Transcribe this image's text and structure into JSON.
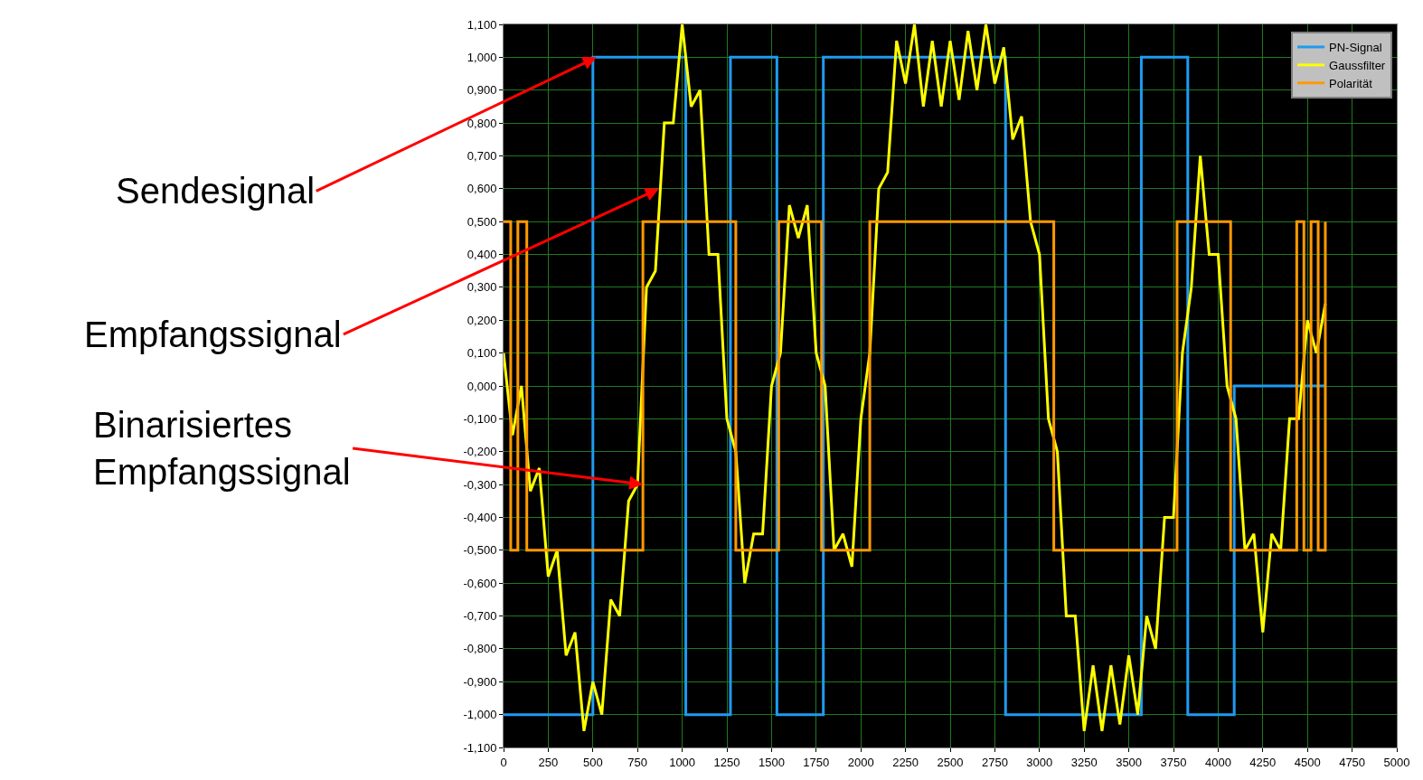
{
  "chart_data": {
    "type": "step",
    "xlim": [
      0,
      5000
    ],
    "xticks": [
      0,
      250,
      500,
      750,
      1000,
      1250,
      1500,
      1750,
      2000,
      2250,
      2500,
      2750,
      3000,
      3250,
      3500,
      3750,
      4000,
      4250,
      4500,
      4750,
      5000
    ],
    "ylim": [
      -1.1,
      1.1
    ],
    "yticks": [
      {
        "value": 1.1,
        "label": "1,100"
      },
      {
        "value": 1.0,
        "label": "1,000"
      },
      {
        "value": 0.9,
        "label": "0,900"
      },
      {
        "value": 0.8,
        "label": "0,800"
      },
      {
        "value": 0.7,
        "label": "0,700"
      },
      {
        "value": 0.6,
        "label": "0,600"
      },
      {
        "value": 0.5,
        "label": "0,500"
      },
      {
        "value": 0.4,
        "label": "0,400"
      },
      {
        "value": 0.3,
        "label": "0,300"
      },
      {
        "value": 0.2,
        "label": "0,200"
      },
      {
        "value": 0.1,
        "label": "0,100"
      },
      {
        "value": 0.0,
        "label": "0,000"
      },
      {
        "value": -0.1,
        "label": "-0,100"
      },
      {
        "value": -0.2,
        "label": "-0,200"
      },
      {
        "value": -0.3,
        "label": "-0,300"
      },
      {
        "value": -0.4,
        "label": "-0,400"
      },
      {
        "value": -0.5,
        "label": "-0,500"
      },
      {
        "value": -0.6,
        "label": "-0,600"
      },
      {
        "value": -0.7,
        "label": "-0,700"
      },
      {
        "value": -0.8,
        "label": "-0,800"
      },
      {
        "value": -0.9,
        "label": "-0,900"
      },
      {
        "value": -1.0,
        "label": "-1,000"
      },
      {
        "value": -1.1,
        "label": "-1,100"
      }
    ],
    "grid": true,
    "legend": "top right",
    "marker": "none",
    "line_style": "solid",
    "series": [
      {
        "name": "PN-Signal",
        "color": "#1e9bf0",
        "x": [
          0,
          500,
          1020,
          1270,
          1530,
          1790,
          2810,
          3570,
          3830,
          4090,
          4600
        ],
        "values": [
          -1.0,
          1.0,
          -1.0,
          1.0,
          -1.0,
          1.0,
          -1.0,
          1.0,
          -1.0,
          0.0,
          0.0
        ]
      },
      {
        "name": "Gaussfilter",
        "color": "#ffff00",
        "type": "line",
        "x": [
          0,
          50,
          100,
          150,
          200,
          250,
          300,
          350,
          400,
          450,
          500,
          550,
          600,
          650,
          700,
          750,
          800,
          850,
          900,
          950,
          1000,
          1050,
          1100,
          1150,
          1200,
          1250,
          1300,
          1350,
          1400,
          1450,
          1500,
          1550,
          1600,
          1650,
          1700,
          1750,
          1800,
          1850,
          1900,
          1950,
          2000,
          2050,
          2100,
          2150,
          2200,
          2250,
          2300,
          2350,
          2400,
          2450,
          2500,
          2550,
          2600,
          2650,
          2700,
          2750,
          2800,
          2850,
          2900,
          2950,
          3000,
          3050,
          3100,
          3150,
          3200,
          3250,
          3300,
          3350,
          3400,
          3450,
          3500,
          3550,
          3600,
          3650,
          3700,
          3750,
          3800,
          3850,
          3900,
          3950,
          4000,
          4050,
          4100,
          4150,
          4200,
          4250,
          4300,
          4350,
          4400,
          4450,
          4500,
          4550,
          4600
        ],
        "values": [
          0.1,
          -0.15,
          0.0,
          -0.32,
          -0.25,
          -0.58,
          -0.5,
          -0.82,
          -0.75,
          -1.05,
          -0.9,
          -1.0,
          -0.65,
          -0.7,
          -0.35,
          -0.3,
          0.3,
          0.35,
          0.8,
          0.8,
          1.1,
          0.85,
          0.9,
          0.4,
          0.4,
          -0.1,
          -0.2,
          -0.6,
          -0.45,
          -0.45,
          0.0,
          0.1,
          0.55,
          0.45,
          0.55,
          0.1,
          0.0,
          -0.5,
          -0.45,
          -0.55,
          -0.1,
          0.1,
          0.6,
          0.65,
          1.05,
          0.92,
          1.1,
          0.85,
          1.05,
          0.85,
          1.05,
          0.87,
          1.08,
          0.9,
          1.1,
          0.92,
          1.03,
          0.75,
          0.82,
          0.5,
          0.4,
          -0.1,
          -0.2,
          -0.7,
          -0.7,
          -1.05,
          -0.85,
          -1.05,
          -0.85,
          -1.03,
          -0.82,
          -1.0,
          -0.7,
          -0.8,
          -0.4,
          -0.4,
          0.1,
          0.3,
          0.7,
          0.4,
          0.4,
          0.0,
          -0.1,
          -0.5,
          -0.45,
          -0.75,
          -0.45,
          -0.5,
          -0.1,
          -0.1,
          0.2,
          0.1,
          0.25
        ]
      },
      {
        "name": "Polarität",
        "color": "#ff9900",
        "x": [
          0,
          40,
          80,
          130,
          780,
          1300,
          1540,
          1780,
          2050,
          3080,
          3770,
          4070,
          4440,
          4480,
          4520,
          4560,
          4600
        ],
        "values": [
          0.5,
          -0.5,
          0.5,
          -0.5,
          0.5,
          -0.5,
          0.5,
          -0.5,
          0.5,
          -0.5,
          0.5,
          -0.5,
          0.5,
          -0.5,
          0.5,
          -0.5,
          0.5
        ]
      }
    ],
    "annotations": [
      {
        "text": "Sendesignal",
        "x": 520,
        "y": 1.0
      },
      {
        "text": "Empfangssignal",
        "x": 870,
        "y": 0.6
      },
      {
        "text": "Binarisiertes\nEmpfangssignal",
        "x": 780,
        "y": -0.3
      }
    ]
  }
}
